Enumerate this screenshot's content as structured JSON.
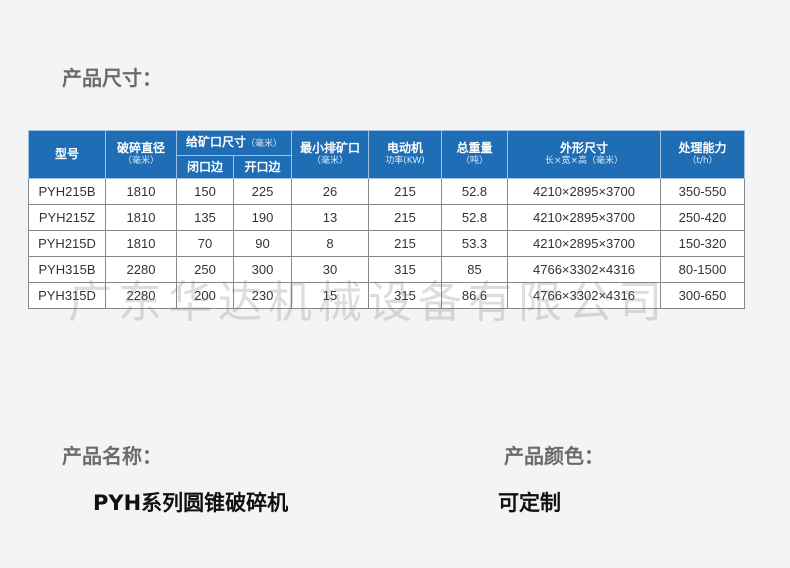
{
  "size_title": "产品尺寸：",
  "name_label": "产品名称：",
  "name_value": "PYH系列圆锥破碎机",
  "color_label": "产品颜色：",
  "color_value": "可定制",
  "watermark": "广东华达机械设备有限公司",
  "header_color": "#1f6db5",
  "headers": {
    "model": "型号",
    "crush_dia": "破碎直径",
    "crush_dia_unit": "（毫米）",
    "feed": "给矿口尺寸",
    "feed_unit": "（毫米）",
    "closed": "闭口边",
    "open": "开口边",
    "min_out": "最小排矿口",
    "min_out_unit": "（毫米）",
    "motor": "电动机",
    "motor_unit": "功率(KW)",
    "weight": "总重量",
    "weight_unit": "（吨）",
    "dims": "外形尺寸",
    "dims_unit": "长×宽×高（毫米）",
    "capacity": "处理能力",
    "capacity_unit": "（t/h）"
  },
  "rows": [
    [
      "PYH215B",
      "1810",
      "150",
      "225",
      "26",
      "215",
      "52.8",
      "4210×2895×3700",
      "350-550"
    ],
    [
      "PYH215Z",
      "1810",
      "135",
      "190",
      "13",
      "215",
      "52.8",
      "4210×2895×3700",
      "250-420"
    ],
    [
      "PYH215D",
      "1810",
      "70",
      "90",
      "8",
      "215",
      "53.3",
      "4210×2895×3700",
      "150-320"
    ],
    [
      "PYH315B",
      "2280",
      "250",
      "300",
      "30",
      "315",
      "85",
      "4766×3302×4316",
      "80-1500"
    ],
    [
      "PYH315D",
      "2280",
      "200",
      "230",
      "15",
      "315",
      "86.6",
      "4766×3302×4316",
      "300-650"
    ]
  ]
}
